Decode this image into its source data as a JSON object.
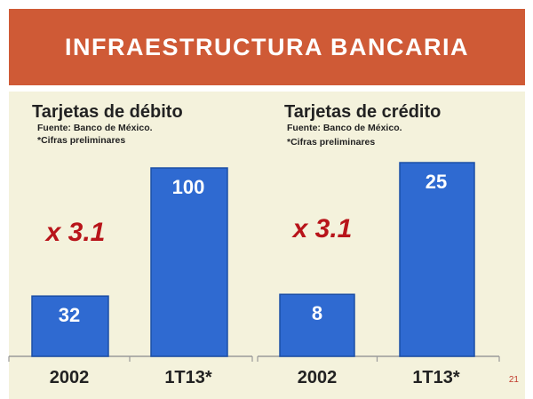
{
  "header": {
    "title": "INFRAESTRUCTURA BANCARIA"
  },
  "page_number": "21",
  "colors": {
    "header": "#cf5a36",
    "background": "#f4f2dc",
    "bar": "#2f6ad1",
    "multiplier": "#b8141a"
  },
  "chart_data": [
    {
      "type": "bar",
      "title": "Tarjetas de débito",
      "source": "Fuente: Banco de México.",
      "note": "*Cifras preliminares",
      "categories": [
        "2002",
        "1T13*"
      ],
      "values": [
        32,
        100
      ],
      "data_labels": [
        "32",
        "100"
      ],
      "multiplier_label": "x 3.1",
      "ylim": [
        0,
        100
      ],
      "grid": false,
      "legend": "none"
    },
    {
      "type": "bar",
      "title": "Tarjetas de crédito",
      "source": "Fuente: Banco de México.",
      "note": "*Cifras preliminares",
      "categories": [
        "2002",
        "1T13*"
      ],
      "values": [
        8,
        25
      ],
      "data_labels": [
        "8",
        "25"
      ],
      "multiplier_label": "x 3.1",
      "ylim": [
        0,
        25
      ],
      "grid": false,
      "legend": "none"
    }
  ]
}
